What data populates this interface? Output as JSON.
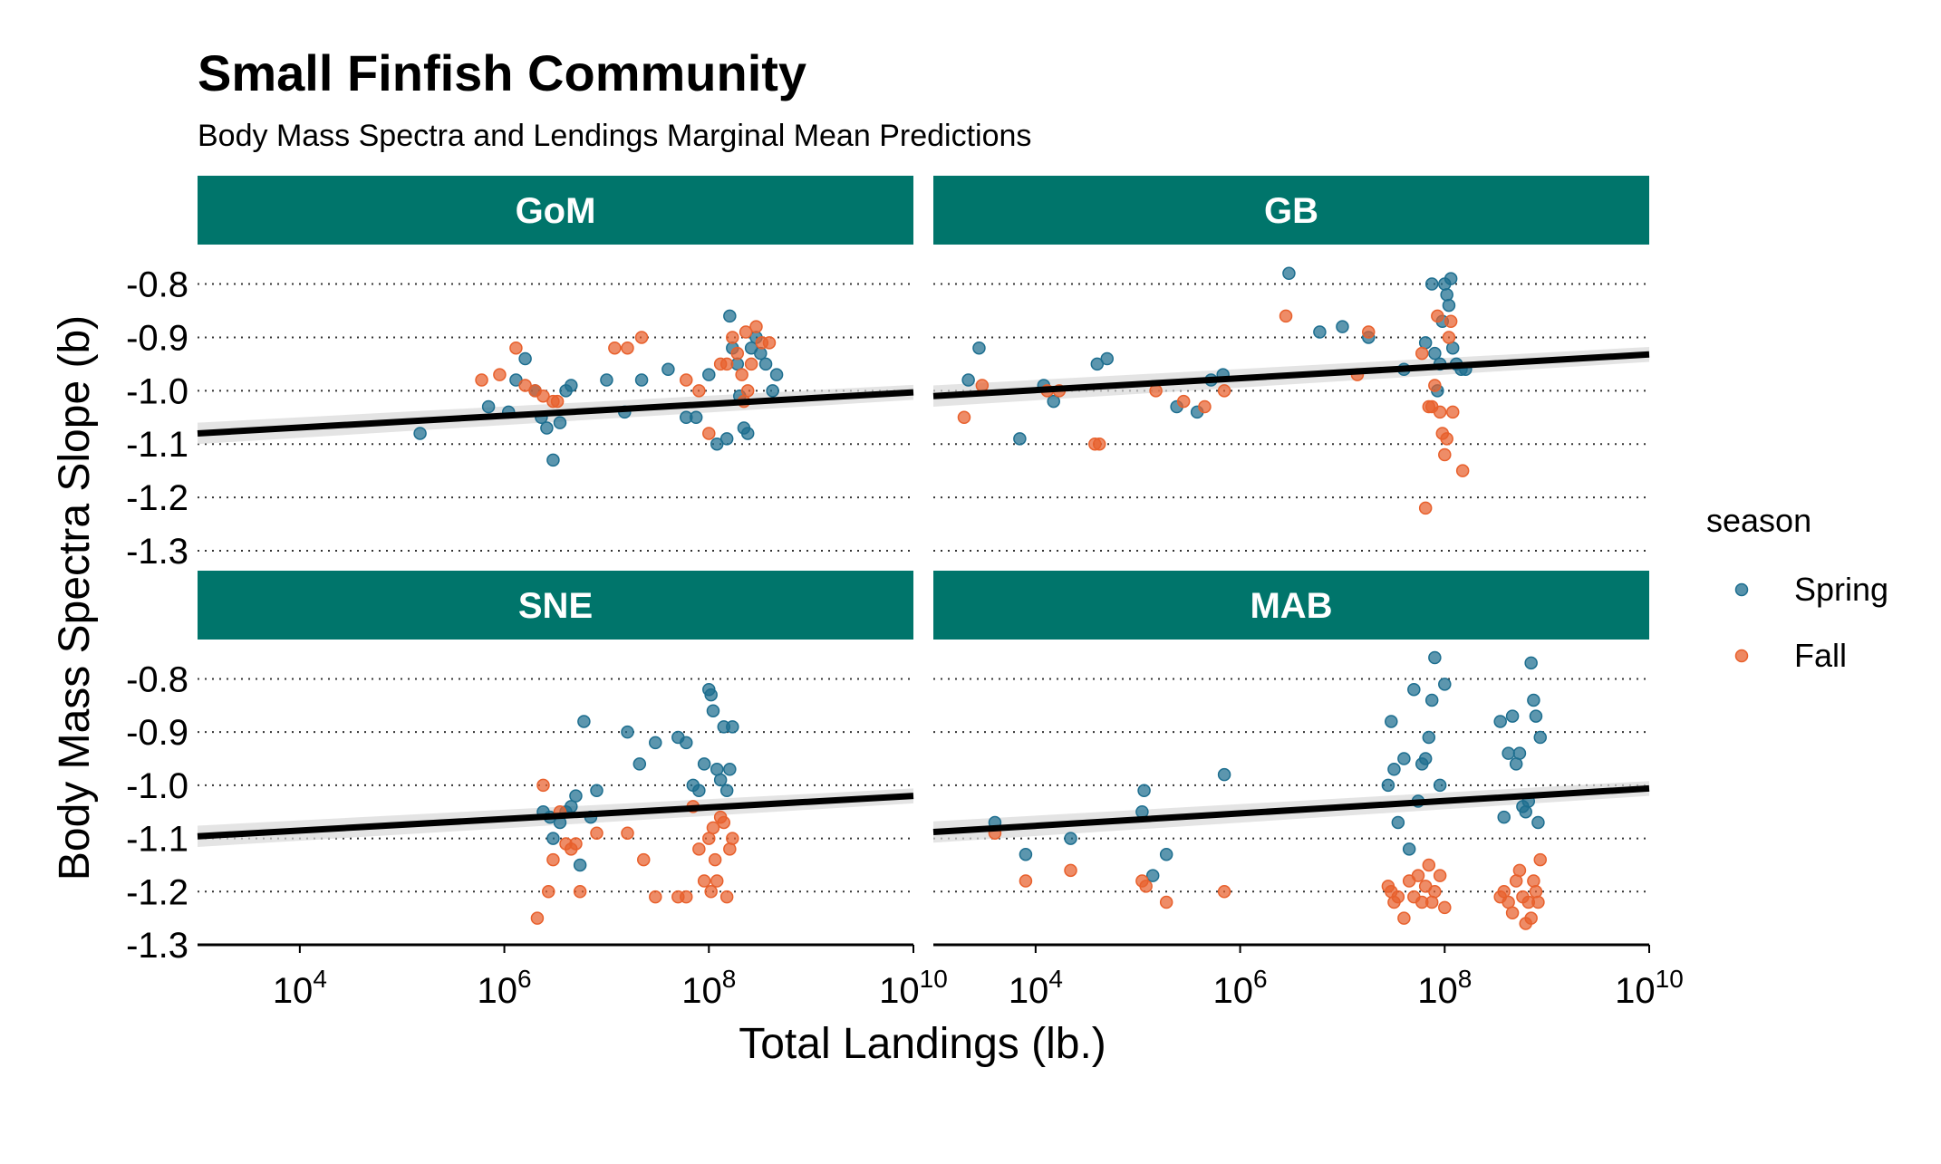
{
  "chart_data": {
    "type": "scatter",
    "title": "Small Finfish Community",
    "subtitle": "Body Mass Spectra and Lendings Marginal Mean Predictions",
    "xlabel": "Total Landings (lb.)",
    "ylabel": "Body Mass Spectra Slope (b)",
    "x_scale": "log10",
    "xlim": [
      1000,
      10000000000
    ],
    "x_ticks": [
      {
        "value": 10000,
        "base": "10",
        "exp": "4"
      },
      {
        "value": 1000000,
        "base": "10",
        "exp": "6"
      },
      {
        "value": 100000000,
        "base": "10",
        "exp": "8"
      },
      {
        "value": 10000000000,
        "base": "10",
        "exp": "10"
      }
    ],
    "ylim": [
      -1.3,
      -0.76
    ],
    "y_ticks": [
      {
        "value": -0.8,
        "label": "-0.8"
      },
      {
        "value": -0.9,
        "label": "-0.9"
      },
      {
        "value": -1.0,
        "label": "-1.0"
      },
      {
        "value": -1.1,
        "label": "-1.1"
      },
      {
        "value": -1.2,
        "label": "-1.2"
      },
      {
        "value": -1.3,
        "label": "-1.3"
      }
    ],
    "grid": "horizontal dotted",
    "legend": {
      "title": "season",
      "placement": "right",
      "entries": [
        {
          "label": "Spring",
          "color": "#1d6e8f"
        },
        {
          "label": "Fall",
          "color": "#e8602c"
        }
      ]
    },
    "colors": {
      "strip_bg": "#00756b",
      "strip_text": "#ffffff",
      "spring": "#1d6e8f",
      "fall": "#e8602c",
      "trend": "#000000",
      "ribbon": "#d9d9d9"
    },
    "panels": [
      {
        "name": "GoM",
        "trend": {
          "x": [
            1000,
            10000000000
          ],
          "y": [
            -1.08,
            -1.003
          ],
          "band": 0.02
        },
        "spring": [
          [
            150000.0,
            -1.08
          ],
          [
            700000.0,
            -1.03
          ],
          [
            1100000.0,
            -1.04
          ],
          [
            1300000.0,
            -0.98
          ],
          [
            1600000.0,
            -0.94
          ],
          [
            2000000.0,
            -1.0
          ],
          [
            2300000.0,
            -1.05
          ],
          [
            2600000.0,
            -1.07
          ],
          [
            3000000.0,
            -1.13
          ],
          [
            3500000.0,
            -1.06
          ],
          [
            4000000.0,
            -1.0
          ],
          [
            4500000.0,
            -0.99
          ],
          [
            10000000.0,
            -0.98
          ],
          [
            15000000.0,
            -1.04
          ],
          [
            22000000.0,
            -0.98
          ],
          [
            40000000.0,
            -0.96
          ],
          [
            60000000.0,
            -1.05
          ],
          [
            75000000.0,
            -1.05
          ],
          [
            100000000.0,
            -0.97
          ],
          [
            120000000.0,
            -1.1
          ],
          [
            150000000.0,
            -1.09
          ],
          [
            160000000.0,
            -0.86
          ],
          [
            170000000.0,
            -0.92
          ],
          [
            190000000.0,
            -0.95
          ],
          [
            200000000.0,
            -1.01
          ],
          [
            220000000.0,
            -1.07
          ],
          [
            240000000.0,
            -1.08
          ],
          [
            260000000.0,
            -0.92
          ],
          [
            290000000.0,
            -0.9
          ],
          [
            320000000.0,
            -0.93
          ],
          [
            360000000.0,
            -0.95
          ],
          [
            420000000.0,
            -1.0
          ],
          [
            460000000.0,
            -0.97
          ]
        ],
        "fall": [
          [
            600000.0,
            -0.98
          ],
          [
            900000.0,
            -0.97
          ],
          [
            1300000.0,
            -0.92
          ],
          [
            1600000.0,
            -0.99
          ],
          [
            2000000.0,
            -1.0
          ],
          [
            2400000.0,
            -1.01
          ],
          [
            3000000.0,
            -1.02
          ],
          [
            3300000.0,
            -1.02
          ],
          [
            12000000.0,
            -0.92
          ],
          [
            16000000.0,
            -0.92
          ],
          [
            22000000.0,
            -0.9
          ],
          [
            60000000.0,
            -0.98
          ],
          [
            80000000.0,
            -1.0
          ],
          [
            100000000.0,
            -1.08
          ],
          [
            130000000.0,
            -0.95
          ],
          [
            150000000.0,
            -0.95
          ],
          [
            170000000.0,
            -0.9
          ],
          [
            190000000.0,
            -0.93
          ],
          [
            210000000.0,
            -0.97
          ],
          [
            230000000.0,
            -0.89
          ],
          [
            260000000.0,
            -0.95
          ],
          [
            290000000.0,
            -0.88
          ],
          [
            330000000.0,
            -0.91
          ],
          [
            390000000.0,
            -0.91
          ],
          [
            240000000.0,
            -1.0
          ],
          [
            220000000.0,
            -1.02
          ]
        ]
      },
      {
        "name": "GB",
        "trend": {
          "x": [
            1000,
            10000000000
          ],
          "y": [
            -1.01,
            -0.932
          ],
          "band": 0.02
        },
        "spring": [
          [
            2200.0,
            -0.98
          ],
          [
            2800.0,
            -0.92
          ],
          [
            7000.0,
            -1.09
          ],
          [
            12000.0,
            -0.99
          ],
          [
            15000.0,
            -1.02
          ],
          [
            40000.0,
            -0.95
          ],
          [
            50000.0,
            -0.94
          ],
          [
            240000.0,
            -1.03
          ],
          [
            380000.0,
            -1.04
          ],
          [
            520000.0,
            -0.98
          ],
          [
            680000.0,
            -0.97
          ],
          [
            3000000.0,
            -0.78
          ],
          [
            6000000.0,
            -0.89
          ],
          [
            10000000.0,
            -0.88
          ],
          [
            18000000.0,
            -0.9
          ],
          [
            40000000.0,
            -0.96
          ],
          [
            65000000.0,
            -0.91
          ],
          [
            75000000.0,
            -0.8
          ],
          [
            80000000.0,
            -0.93
          ],
          [
            85000000.0,
            -1.0
          ],
          [
            90000000.0,
            -0.95
          ],
          [
            95000000.0,
            -0.87
          ],
          [
            100000000.0,
            -0.8
          ],
          [
            105000000.0,
            -0.82
          ],
          [
            110000000.0,
            -0.84
          ],
          [
            115000000.0,
            -0.79
          ],
          [
            120000000.0,
            -0.92
          ],
          [
            130000000.0,
            -0.95
          ],
          [
            145000000.0,
            -0.96
          ],
          [
            160000000.0,
            -0.96
          ]
        ],
        "fall": [
          [
            2000.0,
            -1.05
          ],
          [
            3000.0,
            -0.99
          ],
          [
            13000.0,
            -1.0
          ],
          [
            17000.0,
            -1.0
          ],
          [
            38000.0,
            -1.1
          ],
          [
            42000.0,
            -1.1
          ],
          [
            150000.0,
            -1.0
          ],
          [
            280000.0,
            -1.02
          ],
          [
            450000.0,
            -1.03
          ],
          [
            700000.0,
            -1.0
          ],
          [
            2800000.0,
            -0.86
          ],
          [
            14000000.0,
            -0.97
          ],
          [
            18000000.0,
            -0.89
          ],
          [
            60000000.0,
            -0.93
          ],
          [
            65000000.0,
            -1.22
          ],
          [
            70000000.0,
            -1.03
          ],
          [
            75000000.0,
            -1.03
          ],
          [
            80000000.0,
            -0.99
          ],
          [
            85000000.0,
            -0.86
          ],
          [
            90000000.0,
            -1.04
          ],
          [
            95000000.0,
            -1.08
          ],
          [
            100000000.0,
            -1.12
          ],
          [
            105000000.0,
            -1.09
          ],
          [
            110000000.0,
            -0.9
          ],
          [
            115000000.0,
            -0.87
          ],
          [
            120000000.0,
            -1.04
          ],
          [
            150000000.0,
            -1.15
          ]
        ]
      },
      {
        "name": "SNE",
        "trend": {
          "x": [
            1000,
            10000000000
          ],
          "y": [
            -1.096,
            -1.02
          ],
          "band": 0.02
        },
        "spring": [
          [
            2400000.0,
            -1.05
          ],
          [
            2800000.0,
            -1.06
          ],
          [
            3000000.0,
            -1.1
          ],
          [
            3500000.0,
            -1.07
          ],
          [
            4000000.0,
            -1.05
          ],
          [
            4500000.0,
            -1.04
          ],
          [
            5000000.0,
            -1.02
          ],
          [
            5500000.0,
            -1.15
          ],
          [
            6000000.0,
            -0.88
          ],
          [
            7000000.0,
            -1.06
          ],
          [
            8000000.0,
            -1.01
          ],
          [
            16000000.0,
            -0.9
          ],
          [
            21000000.0,
            -0.96
          ],
          [
            30000000.0,
            -0.92
          ],
          [
            50000000.0,
            -0.91
          ],
          [
            60000000.0,
            -0.92
          ],
          [
            70000000.0,
            -1.0
          ],
          [
            80000000.0,
            -1.01
          ],
          [
            90000000.0,
            -0.96
          ],
          [
            100000000.0,
            -0.82
          ],
          [
            105000000.0,
            -0.83
          ],
          [
            110000000.0,
            -0.86
          ],
          [
            120000000.0,
            -0.97
          ],
          [
            130000000.0,
            -0.99
          ],
          [
            140000000.0,
            -0.89
          ],
          [
            150000000.0,
            -1.01
          ],
          [
            160000000.0,
            -0.97
          ],
          [
            170000000.0,
            -0.89
          ]
        ],
        "fall": [
          [
            2100000.0,
            -1.25
          ],
          [
            2400000.0,
            -1.0
          ],
          [
            2700000.0,
            -1.2
          ],
          [
            3000000.0,
            -1.14
          ],
          [
            3500000.0,
            -1.05
          ],
          [
            4000000.0,
            -1.11
          ],
          [
            4500000.0,
            -1.12
          ],
          [
            5000000.0,
            -1.11
          ],
          [
            5500000.0,
            -1.2
          ],
          [
            8000000.0,
            -1.09
          ],
          [
            16000000.0,
            -1.09
          ],
          [
            23000000.0,
            -1.14
          ],
          [
            30000000.0,
            -1.21
          ],
          [
            50000000.0,
            -1.21
          ],
          [
            60000000.0,
            -1.21
          ],
          [
            70000000.0,
            -1.04
          ],
          [
            80000000.0,
            -1.12
          ],
          [
            90000000.0,
            -1.18
          ],
          [
            100000000.0,
            -1.1
          ],
          [
            105000000.0,
            -1.2
          ],
          [
            110000000.0,
            -1.08
          ],
          [
            115000000.0,
            -1.14
          ],
          [
            120000000.0,
            -1.18
          ],
          [
            130000000.0,
            -1.06
          ],
          [
            140000000.0,
            -1.07
          ],
          [
            150000000.0,
            -1.21
          ],
          [
            160000000.0,
            -1.12
          ],
          [
            170000000.0,
            -1.1
          ]
        ]
      },
      {
        "name": "MAB",
        "trend": {
          "x": [
            1000,
            10000000000
          ],
          "y": [
            -1.088,
            -1.006
          ],
          "band": 0.02
        },
        "spring": [
          [
            4000.0,
            -1.07
          ],
          [
            8000.0,
            -1.13
          ],
          [
            22000.0,
            -1.1
          ],
          [
            110000.0,
            -1.05
          ],
          [
            115000.0,
            -1.01
          ],
          [
            140000.0,
            -1.17
          ],
          [
            190000.0,
            -1.13
          ],
          [
            700000.0,
            -0.98
          ],
          [
            28000000.0,
            -1.0
          ],
          [
            30000000.0,
            -0.88
          ],
          [
            32000000.0,
            -0.97
          ],
          [
            35000000.0,
            -1.07
          ],
          [
            40000000.0,
            -0.95
          ],
          [
            45000000.0,
            -1.12
          ],
          [
            50000000.0,
            -0.82
          ],
          [
            55000000.0,
            -1.03
          ],
          [
            60000000.0,
            -0.96
          ],
          [
            65000000.0,
            -0.95
          ],
          [
            70000000.0,
            -0.91
          ],
          [
            75000000.0,
            -0.84
          ],
          [
            80000000.0,
            -0.76
          ],
          [
            90000000.0,
            -1.0
          ],
          [
            100000000.0,
            -0.81
          ],
          [
            350000000.0,
            -0.88
          ],
          [
            380000000.0,
            -1.06
          ],
          [
            420000000.0,
            -0.94
          ],
          [
            460000000.0,
            -0.87
          ],
          [
            500000000.0,
            -0.96
          ],
          [
            540000000.0,
            -0.94
          ],
          [
            580000000.0,
            -1.04
          ],
          [
            620000000.0,
            -1.05
          ],
          [
            660000000.0,
            -1.03
          ],
          [
            700000000.0,
            -0.77
          ],
          [
            740000000.0,
            -0.84
          ],
          [
            780000000.0,
            -0.87
          ],
          [
            820000000.0,
            -1.07
          ],
          [
            860000000.0,
            -0.91
          ]
        ],
        "fall": [
          [
            4000.0,
            -1.09
          ],
          [
            8000.0,
            -1.18
          ],
          [
            22000.0,
            -1.16
          ],
          [
            110000.0,
            -1.18
          ],
          [
            120000.0,
            -1.19
          ],
          [
            190000.0,
            -1.22
          ],
          [
            700000.0,
            -1.2
          ],
          [
            28000000.0,
            -1.19
          ],
          [
            30000000.0,
            -1.2
          ],
          [
            32000000.0,
            -1.22
          ],
          [
            35000000.0,
            -1.21
          ],
          [
            40000000.0,
            -1.25
          ],
          [
            45000000.0,
            -1.18
          ],
          [
            50000000.0,
            -1.21
          ],
          [
            55000000.0,
            -1.17
          ],
          [
            60000000.0,
            -1.22
          ],
          [
            65000000.0,
            -1.19
          ],
          [
            70000000.0,
            -1.15
          ],
          [
            75000000.0,
            -1.22
          ],
          [
            80000000.0,
            -1.2
          ],
          [
            90000000.0,
            -1.17
          ],
          [
            100000000.0,
            -1.23
          ],
          [
            350000000.0,
            -1.21
          ],
          [
            380000000.0,
            -1.2
          ],
          [
            420000000.0,
            -1.22
          ],
          [
            460000000.0,
            -1.24
          ],
          [
            500000000.0,
            -1.18
          ],
          [
            540000000.0,
            -1.16
          ],
          [
            580000000.0,
            -1.21
          ],
          [
            620000000.0,
            -1.26
          ],
          [
            660000000.0,
            -1.22
          ],
          [
            700000000.0,
            -1.25
          ],
          [
            740000000.0,
            -1.18
          ],
          [
            780000000.0,
            -1.2
          ],
          [
            820000000.0,
            -1.22
          ],
          [
            860000000.0,
            -1.14
          ]
        ]
      }
    ]
  }
}
